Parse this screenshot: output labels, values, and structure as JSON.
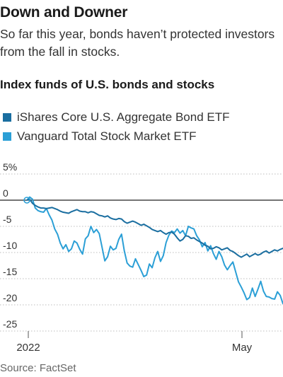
{
  "title": "Down and Downer",
  "subtitle": "So far this year, bonds haven’t protected investors from the fall in stocks.",
  "source": "Source: FactSet",
  "chart_data": {
    "type": "line",
    "title": "Index funds of U.S. bonds and stocks",
    "ylim": [
      -25,
      5
    ],
    "yticks": [
      {
        "value": 5,
        "label": "5%"
      },
      {
        "value": 0,
        "label": "0"
      },
      {
        "value": -5,
        "label": "-5"
      },
      {
        "value": -10,
        "label": "-10"
      },
      {
        "value": -15,
        "label": "-15"
      },
      {
        "value": -20,
        "label": "-20"
      },
      {
        "value": -25,
        "label": "-25"
      }
    ],
    "xticks": [
      "2022",
      "May"
    ],
    "grid": "horizontal",
    "legend_placement": "top-left",
    "series": [
      {
        "name": "iShares Core U.S. Aggregate Bond ETF",
        "color": "#1a6ea0",
        "values": [
          0,
          0.2,
          -0.6,
          -1,
          -1.3,
          -1.5,
          -1.5,
          -1.6,
          -1.5,
          -1.4,
          -1.6,
          -1.8,
          -2.1,
          -2.3,
          -2.4,
          -2.5,
          -2.2,
          -2,
          -1.8,
          -2.1,
          -2.2,
          -2.2,
          -2.4,
          -2.2,
          -2.3,
          -2.6,
          -2.9,
          -3,
          -3.2,
          -3,
          -3.4,
          -3.6,
          -3.7,
          -3.5,
          -3.6,
          -4.1,
          -4.4,
          -4.2,
          -4,
          -4.2,
          -4.5,
          -4.8,
          -4.6,
          -4.9,
          -5.2,
          -5.6,
          -5.8,
          -6,
          -5.8,
          -6.2,
          -6.5,
          -6.2,
          -6.1,
          -6.5,
          -7.2,
          -7.8,
          -7.5,
          -6.8,
          -6.9,
          -7.3,
          -7.2,
          -7.6,
          -7.9,
          -8.2,
          -8.6,
          -8.8,
          -9.3,
          -9.2,
          -8.9,
          -9.1,
          -9.5,
          -9.3,
          -9.1,
          -9.6,
          -9.8,
          -10.2,
          -10.6,
          -10.9,
          -10.6,
          -10.3,
          -10.8,
          -10.5,
          -10.2,
          -10.5,
          -10.3,
          -9.9,
          -9.7,
          -10.1,
          -9.8,
          -9.5,
          -9.7,
          -9.4,
          -9.2
        ]
      },
      {
        "name": "Vanguard Total Stock Market ETF",
        "color": "#2b9fd6",
        "values": [
          0,
          0.6,
          0.2,
          -1.5,
          -2,
          -2.2,
          -2.3,
          -1.6,
          -2.8,
          -3.8,
          -5.5,
          -6.5,
          -8.2,
          -9.3,
          -8.5,
          -9.8,
          -9.3,
          -7.8,
          -8.2,
          -9.4,
          -10.3,
          -7.4,
          -6.8,
          -5,
          -6.2,
          -5.6,
          -6.4,
          -9,
          -11.6,
          -10.8,
          -8.8,
          -9.5,
          -9.2,
          -7.5,
          -6.5,
          -9.7,
          -12,
          -12.6,
          -12.8,
          -11.2,
          -12.3,
          -13.4,
          -14.6,
          -14.3,
          -12.2,
          -12.9,
          -11,
          -9.8,
          -11.7,
          -10.6,
          -8.1,
          -6.7,
          -5.9,
          -6.2,
          -5.5,
          -6.3,
          -5.8,
          -6.8,
          -5,
          -5.3,
          -5.5,
          -6.8,
          -7.6,
          -8.9,
          -8.1,
          -9.7,
          -8.7,
          -10.2,
          -11.3,
          -9.8,
          -10.8,
          -12.4,
          -13.3,
          -12.5,
          -11.8,
          -13.7,
          -15.6,
          -16.6,
          -17.7,
          -19,
          -18.6,
          -16.8,
          -18.4,
          -17,
          -15.5,
          -17.4,
          -18.4,
          -18.5,
          -18.8,
          -18.9,
          -17.5,
          -18.2,
          -19.8
        ]
      }
    ]
  }
}
